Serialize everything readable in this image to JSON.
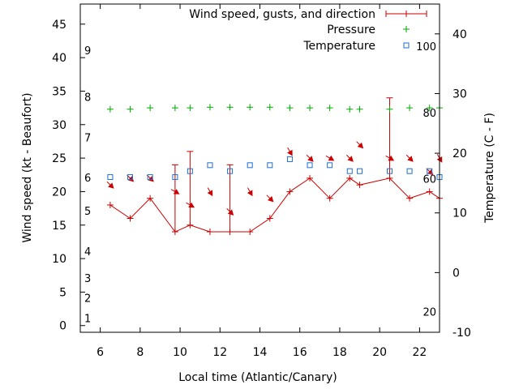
{
  "chart_data": {
    "type": "line",
    "title": "",
    "xlabel": "Local time (Atlantic/Canary)",
    "ylabel_left": "Wind speed (kt - Beaufort)",
    "ylabel_right": "Temperature (C - F)",
    "xlim": [
      5,
      23
    ],
    "ylim_left": [
      -1,
      48
    ],
    "ylim_right": [
      -10,
      45
    ],
    "x_ticks": [
      "6",
      "8",
      "10",
      "12",
      "14",
      "16",
      "18",
      "20",
      "22"
    ],
    "x_tick_values": [
      6,
      8,
      10,
      12,
      14,
      16,
      18,
      20,
      22
    ],
    "y_left_ticks": [
      "0",
      "5",
      "10",
      "15",
      "20",
      "25",
      "30",
      "35",
      "40",
      "45"
    ],
    "y_left_tick_values": [
      0,
      5,
      10,
      15,
      20,
      25,
      30,
      35,
      40,
      45
    ],
    "y_right_ticks": [
      "-10",
      "0",
      "10",
      "20",
      "30",
      "40"
    ],
    "y_right_tick_values": [
      -10,
      0,
      10,
      20,
      30,
      40
    ],
    "beaufort_labels": [
      {
        "label": "1",
        "kt": 1
      },
      {
        "label": "2",
        "kt": 4
      },
      {
        "label": "3",
        "kt": 7
      },
      {
        "label": "4",
        "kt": 11
      },
      {
        "label": "5",
        "kt": 17
      },
      {
        "label": "6",
        "kt": 22
      },
      {
        "label": "7",
        "kt": 28
      },
      {
        "label": "8",
        "kt": 34
      },
      {
        "label": "9",
        "kt": 41
      }
    ],
    "fahrenheit_labels": [
      {
        "label": "20",
        "celsius": -6.7
      },
      {
        "label": "60",
        "celsius": 15.6
      },
      {
        "label": "80",
        "celsius": 26.7
      },
      {
        "label": "100",
        "celsius": 37.8
      }
    ],
    "legend": [
      {
        "name": "Wind speed, gusts, and direction",
        "color": "#cc0000"
      },
      {
        "name": "Pressure",
        "color": "#00aa00"
      },
      {
        "name": "Temperature",
        "color": "#1f6fd1"
      }
    ],
    "series": [
      {
        "name": "Wind speed",
        "color": "#cc0000",
        "x": [
          6.5,
          7.5,
          8.5,
          9.75,
          10.5,
          11.5,
          12.5,
          13.5,
          14.5,
          15.5,
          16.5,
          17.5,
          18.5,
          19,
          20.5,
          21.5,
          22.5,
          23
        ],
        "values": [
          18,
          16,
          19,
          14,
          15,
          14,
          14,
          14,
          16,
          20,
          22,
          19,
          22,
          21,
          22,
          19,
          20,
          19
        ],
        "gusts": [
          null,
          null,
          null,
          24,
          26,
          null,
          24,
          null,
          null,
          null,
          null,
          null,
          null,
          null,
          34,
          null,
          null,
          null
        ],
        "direction_deg": [
          315,
          315,
          315,
          300,
          300,
          330,
          315,
          330,
          315,
          330,
          315,
          300,
          315,
          315,
          300,
          315,
          315,
          330
        ]
      },
      {
        "name": "Pressure",
        "color": "#00aa00",
        "x": [
          6.5,
          7.5,
          8.5,
          9.75,
          10.5,
          11.5,
          12.5,
          13.5,
          14.5,
          15.5,
          16.5,
          17.5,
          18.5,
          19,
          20.5,
          21.5,
          22.5,
          23
        ],
        "values": [
          32.3,
          32.3,
          32.5,
          32.5,
          32.5,
          32.6,
          32.6,
          32.6,
          32.6,
          32.5,
          32.5,
          32.5,
          32.3,
          32.3,
          32.3,
          32.5,
          32.5,
          32.5
        ]
      },
      {
        "name": "Temperature",
        "color": "#1f6fd1",
        "x": [
          6.5,
          7.5,
          8.5,
          9.75,
          10.5,
          11.5,
          12.5,
          13.5,
          14.5,
          15.5,
          16.5,
          17.5,
          18.5,
          19,
          20.5,
          21.5,
          22.5,
          23
        ],
        "values": [
          16,
          16,
          16,
          16,
          17,
          18,
          17,
          18,
          18,
          19,
          18,
          18,
          17,
          17,
          17,
          17,
          17,
          16
        ]
      }
    ]
  }
}
